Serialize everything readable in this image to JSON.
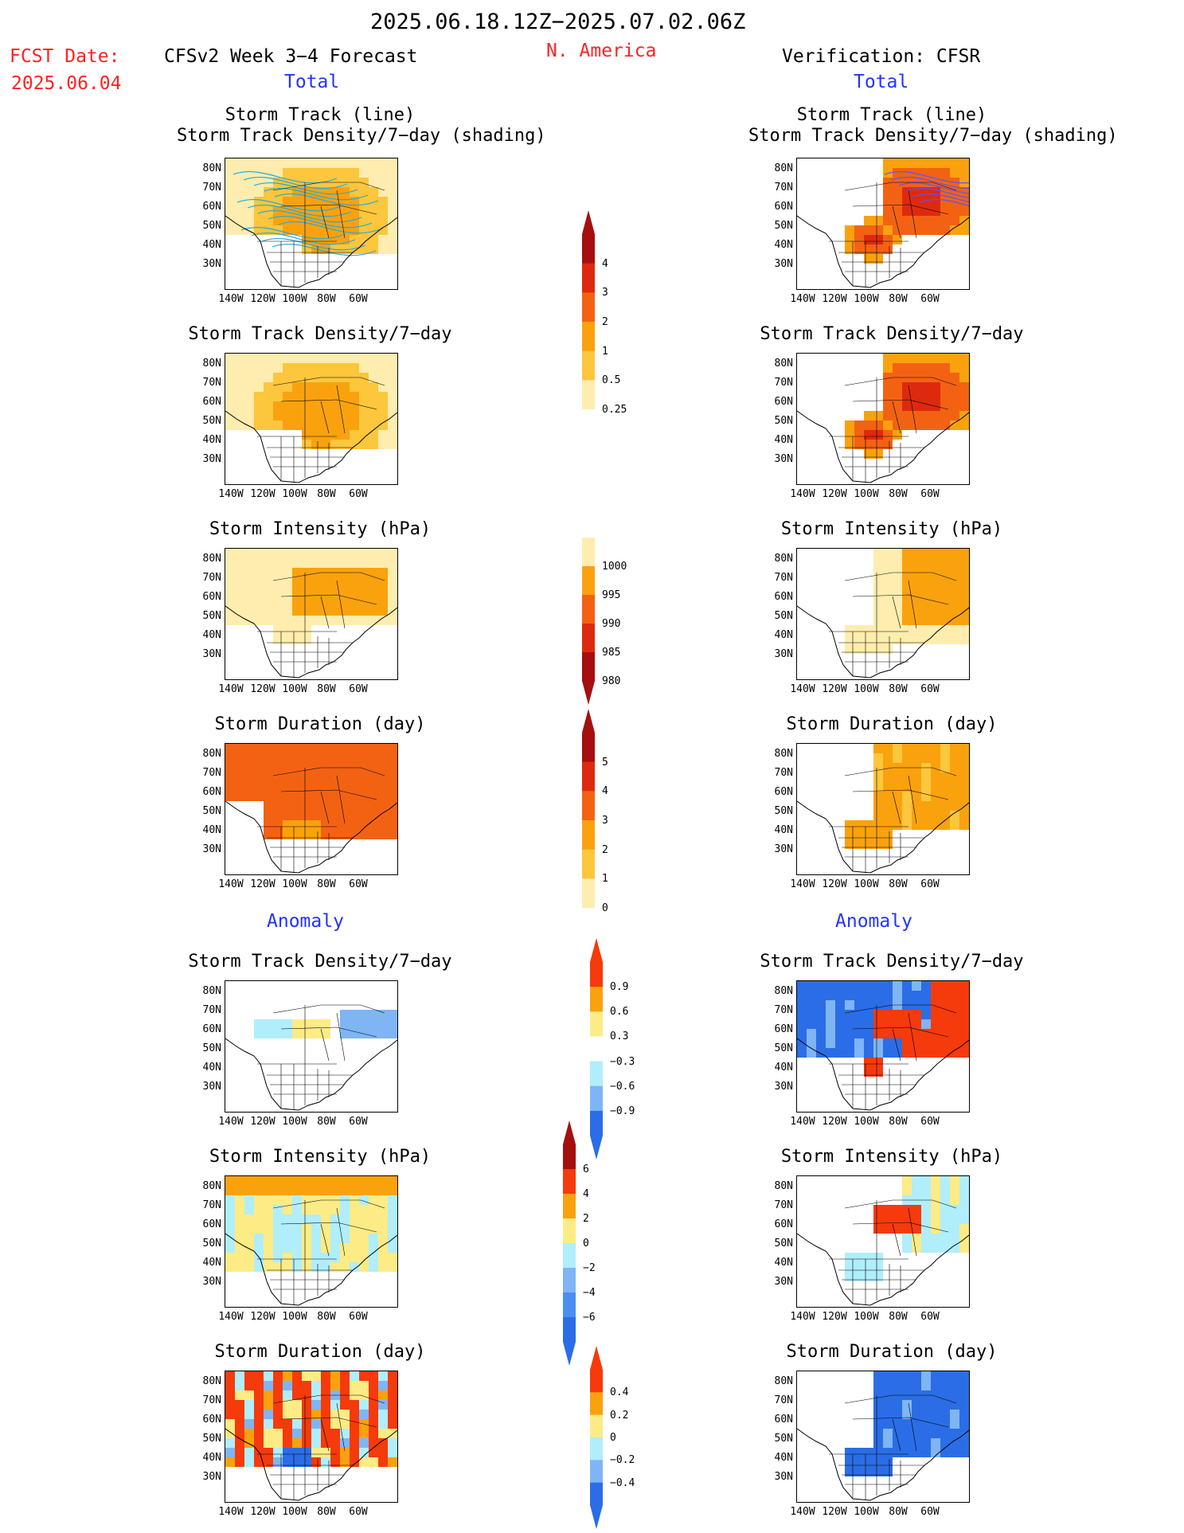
{
  "header": {
    "period": "2025.06.18.12Z−2025.07.02.06Z",
    "fcst_label": "FCST Date:",
    "fcst_date": "2025.06.04",
    "model": "CFSv2 Week 3−4 Forecast",
    "region": "N. America",
    "verification": "Verification: CFSR"
  },
  "sections": {
    "total_left": "Total",
    "total_right": "Total",
    "anomaly_left": "Anomaly",
    "anomaly_right": "Anomaly"
  },
  "panel_titles": {
    "track": "Storm Track (line)",
    "track_sub": "Storm Track Density/7−day (shading)",
    "density": "Storm Track Density/7−day",
    "intensity": "Storm Intensity (hPa)",
    "duration": "Storm Duration (day)"
  },
  "axes": {
    "lat_labels": [
      "80N",
      "70N",
      "60N",
      "50N",
      "40N",
      "30N"
    ],
    "lon_labels": [
      "140W",
      "120W",
      "100W",
      "80W",
      "60W"
    ]
  },
  "colorbars": {
    "density_total": {
      "labels": [
        "4",
        "3",
        "2",
        "1",
        "0.5",
        "0.25"
      ],
      "colors": [
        "#a50f0f",
        "#dd2a0e",
        "#f36213",
        "#f9a20e",
        "#fcc63d",
        "#feedae"
      ]
    },
    "intensity_total": {
      "labels": [
        "1000",
        "995",
        "990",
        "985",
        "980"
      ],
      "colors": [
        "#feedae",
        "#f9a20e",
        "#f36213",
        "#dd2a0e",
        "#a50f0f"
      ]
    },
    "duration_total": {
      "labels": [
        "5",
        "4",
        "3",
        "2",
        "1",
        "0"
      ],
      "colors": [
        "#a50f0f",
        "#dd2a0e",
        "#f36213",
        "#f9a20e",
        "#fcc63d",
        "#feedae"
      ]
    },
    "density_anom": {
      "labels": [
        "0.9",
        "0.6",
        "0.3",
        "−0.3",
        "−0.6",
        "−0.9"
      ],
      "colors": [
        "#f53a0c",
        "#f9a20e",
        "#fdeb86",
        "#ffffff",
        "#b0eefb",
        "#7fb5f5",
        "#2b6de6"
      ]
    },
    "intensity_anom": {
      "labels": [
        "6",
        "4",
        "2",
        "0",
        "−2",
        "−4",
        "−6"
      ],
      "colors": [
        "#a50f0f",
        "#f53a0c",
        "#f9a20e",
        "#fdeb86",
        "#b0eefb",
        "#7fb5f5",
        "#4a8ef2",
        "#2b6de6"
      ]
    },
    "duration_anom": {
      "labels": [
        "0.4",
        "0.2",
        "0",
        "−0.2",
        "−0.4"
      ],
      "colors": [
        "#f53a0c",
        "#f9a20e",
        "#fdeb86",
        "#b0eefb",
        "#7fb5f5",
        "#2b6de6"
      ]
    }
  }
}
